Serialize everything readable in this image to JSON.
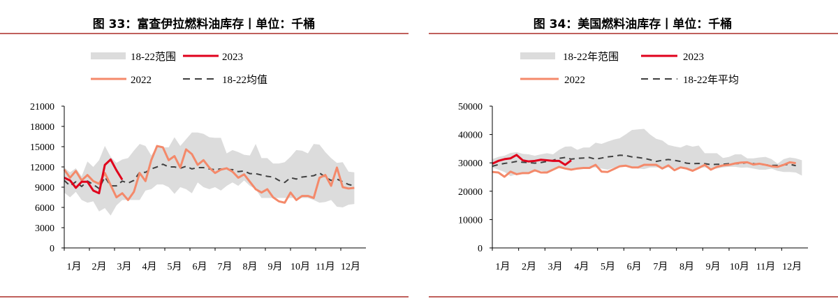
{
  "colors": {
    "range": "#dcdcdc",
    "y2023": "#e0001b",
    "y2022": "#f4896a",
    "avg": "#404040",
    "rule": "#c0605c"
  },
  "chart_data": [
    {
      "type": "line",
      "title": "图 33：富查伊拉燃料油库存丨单位：千桶",
      "ylim": [
        0,
        21000
      ],
      "yticks": [
        0,
        3000,
        6000,
        9000,
        12000,
        15000,
        18000,
        21000
      ],
      "xlabels": [
        "1月",
        "2月",
        "3月",
        "4月",
        "5月",
        "6月",
        "7月",
        "8月",
        "9月",
        "10月",
        "11月",
        "12月"
      ],
      "x_unit": "week",
      "legend": {
        "range": "18-22范围",
        "y2023": "2023",
        "y2022": "2022",
        "avg": "18-22均值"
      },
      "legend_placement": "top",
      "grid": false,
      "series": {
        "range_upper": [
          11900,
          11200,
          11800,
          10600,
          12800,
          12000,
          13000,
          15100,
          13500,
          12600,
          13100,
          13300,
          14400,
          15400,
          15100,
          13700,
          15100,
          14900,
          14900,
          16400,
          15100,
          16100,
          17100,
          17100,
          16900,
          16400,
          16300,
          16300,
          14000,
          14500,
          14200,
          13800,
          13700,
          15400,
          13300,
          13300,
          12500,
          12500,
          12700,
          13500,
          14500,
          14400,
          14000,
          15400,
          15300,
          14200,
          13300,
          12600,
          12700,
          11300,
          11200
        ],
        "range_lower": [
          8200,
          7500,
          8300,
          7100,
          6700,
          6900,
          5400,
          5900,
          4800,
          6300,
          7100,
          7100,
          7100,
          7100,
          8500,
          8700,
          9400,
          9400,
          9000,
          8000,
          9000,
          8700,
          8100,
          9700,
          9000,
          8700,
          9000,
          8500,
          9200,
          9700,
          9200,
          10000,
          9200,
          8700,
          7400,
          7400,
          7400,
          7400,
          7400,
          7400,
          7400,
          7400,
          7400,
          7100,
          6700,
          6800,
          7100,
          6100,
          6000,
          6400,
          6500
        ],
        "y2022": [
          11600,
          10400,
          11400,
          10000,
          10800,
          9900,
          9500,
          11100,
          9300,
          7500,
          8100,
          7100,
          8300,
          11100,
          9900,
          13000,
          15100,
          14900,
          13000,
          13600,
          11900,
          14600,
          13900,
          12300,
          13000,
          11900,
          11100,
          11600,
          11800,
          11300,
          10400,
          10900,
          9800,
          8700,
          8200,
          8700,
          7500,
          6900,
          6700,
          8200,
          7100,
          7700,
          7700,
          7400,
          10400,
          10800,
          9200,
          11900,
          9000,
          8800,
          8900
        ],
        "y2023": [
          10400,
          10000,
          8900,
          9800,
          9800,
          8500,
          8100,
          12300,
          13100,
          11500,
          10100
        ],
        "avg": [
          10000,
          9200,
          9800,
          9100,
          9900,
          9400,
          8800,
          10500,
          9200,
          9200,
          9900,
          9600,
          10000,
          11200,
          11200,
          11700,
          12000,
          12400,
          12000,
          12000,
          11800,
          12100,
          11700,
          11900,
          11900,
          11700,
          11600,
          11700,
          11600,
          11600,
          11300,
          11400,
          11000,
          11000,
          10800,
          10600,
          10500,
          10000,
          9700,
          10400,
          10200,
          10500,
          10600,
          10700,
          11100,
          10500,
          10000,
          10200,
          9800,
          9400,
          9200
        ]
      }
    },
    {
      "type": "line",
      "title": "图 34：美国燃料油库存丨单位：千桶",
      "ylim": [
        0,
        50000
      ],
      "yticks": [
        0,
        10000,
        20000,
        30000,
        40000,
        50000
      ],
      "xlabels": [
        "1月",
        "2月",
        "3月",
        "4月",
        "5月",
        "6月",
        "7月",
        "8月",
        "9月",
        "10月",
        "11月",
        "12月"
      ],
      "x_unit": "week",
      "legend": {
        "range": "18-22年范围",
        "y2023": "2023",
        "y2022": "2022",
        "avg": "18-22年平均"
      },
      "legend_placement": "top",
      "grid": false,
      "series": {
        "range_upper": [
          31300,
          32100,
          32500,
          33500,
          33800,
          33200,
          33000,
          32500,
          33000,
          33400,
          33000,
          34600,
          35700,
          35800,
          34600,
          35400,
          35400,
          37100,
          36700,
          37500,
          38200,
          38700,
          40100,
          41600,
          41800,
          42000,
          40000,
          38500,
          37900,
          36300,
          35800,
          35400,
          36300,
          35700,
          36100,
          33400,
          33400,
          33400,
          31700,
          32100,
          33000,
          33000,
          31600,
          31600,
          31900,
          32100,
          31300,
          29700,
          31300,
          31900,
          31600,
          30900
        ],
        "range_lower": [
          28400,
          27600,
          26800,
          25300,
          26000,
          26000,
          26600,
          26800,
          27200,
          26800,
          27600,
          28400,
          28400,
          27800,
          28000,
          28300,
          28400,
          28400,
          28000,
          27600,
          28300,
          28600,
          29300,
          28400,
          28000,
          27800,
          28400,
          28400,
          28400,
          28400,
          28000,
          28400,
          28000,
          27600,
          28200,
          28400,
          28000,
          28000,
          28400,
          28600,
          28600,
          28300,
          28400,
          28000,
          27600,
          27600,
          28000,
          27200,
          26800,
          26800,
          26600,
          25500
        ],
        "y2022": [
          26800,
          26600,
          25100,
          26900,
          26000,
          26400,
          26400,
          27400,
          26600,
          26600,
          27600,
          28600,
          28000,
          27600,
          28000,
          28200,
          28200,
          29300,
          26900,
          26800,
          27800,
          28800,
          29000,
          28400,
          28400,
          29300,
          29300,
          29300,
          28000,
          29100,
          27400,
          28400,
          28000,
          27200,
          28200,
          29300,
          27600,
          28600,
          29100,
          29300,
          29800,
          30100,
          30200,
          29400,
          29700,
          29300,
          28800,
          28600,
          29300,
          30200,
          29900
        ],
        "y2023": [
          29700,
          30700,
          31300,
          31600,
          32800,
          30900,
          30500,
          30700,
          31100,
          30900,
          30700,
          30700,
          29300,
          30900
        ],
        "avg": [
          28800,
          29400,
          29800,
          30100,
          30500,
          30200,
          30100,
          29900,
          30100,
          30500,
          30900,
          31600,
          31900,
          31300,
          31600,
          31700,
          31900,
          31300,
          31700,
          32100,
          32300,
          32700,
          32600,
          32100,
          31900,
          31600,
          31100,
          30500,
          30900,
          31200,
          30900,
          30500,
          29900,
          29700,
          29800,
          29700,
          29400,
          29500,
          29500,
          29700,
          29700,
          29800,
          30100,
          29700,
          29500,
          29300,
          29100,
          29100,
          29300,
          29500,
          29000
        ]
      }
    }
  ]
}
